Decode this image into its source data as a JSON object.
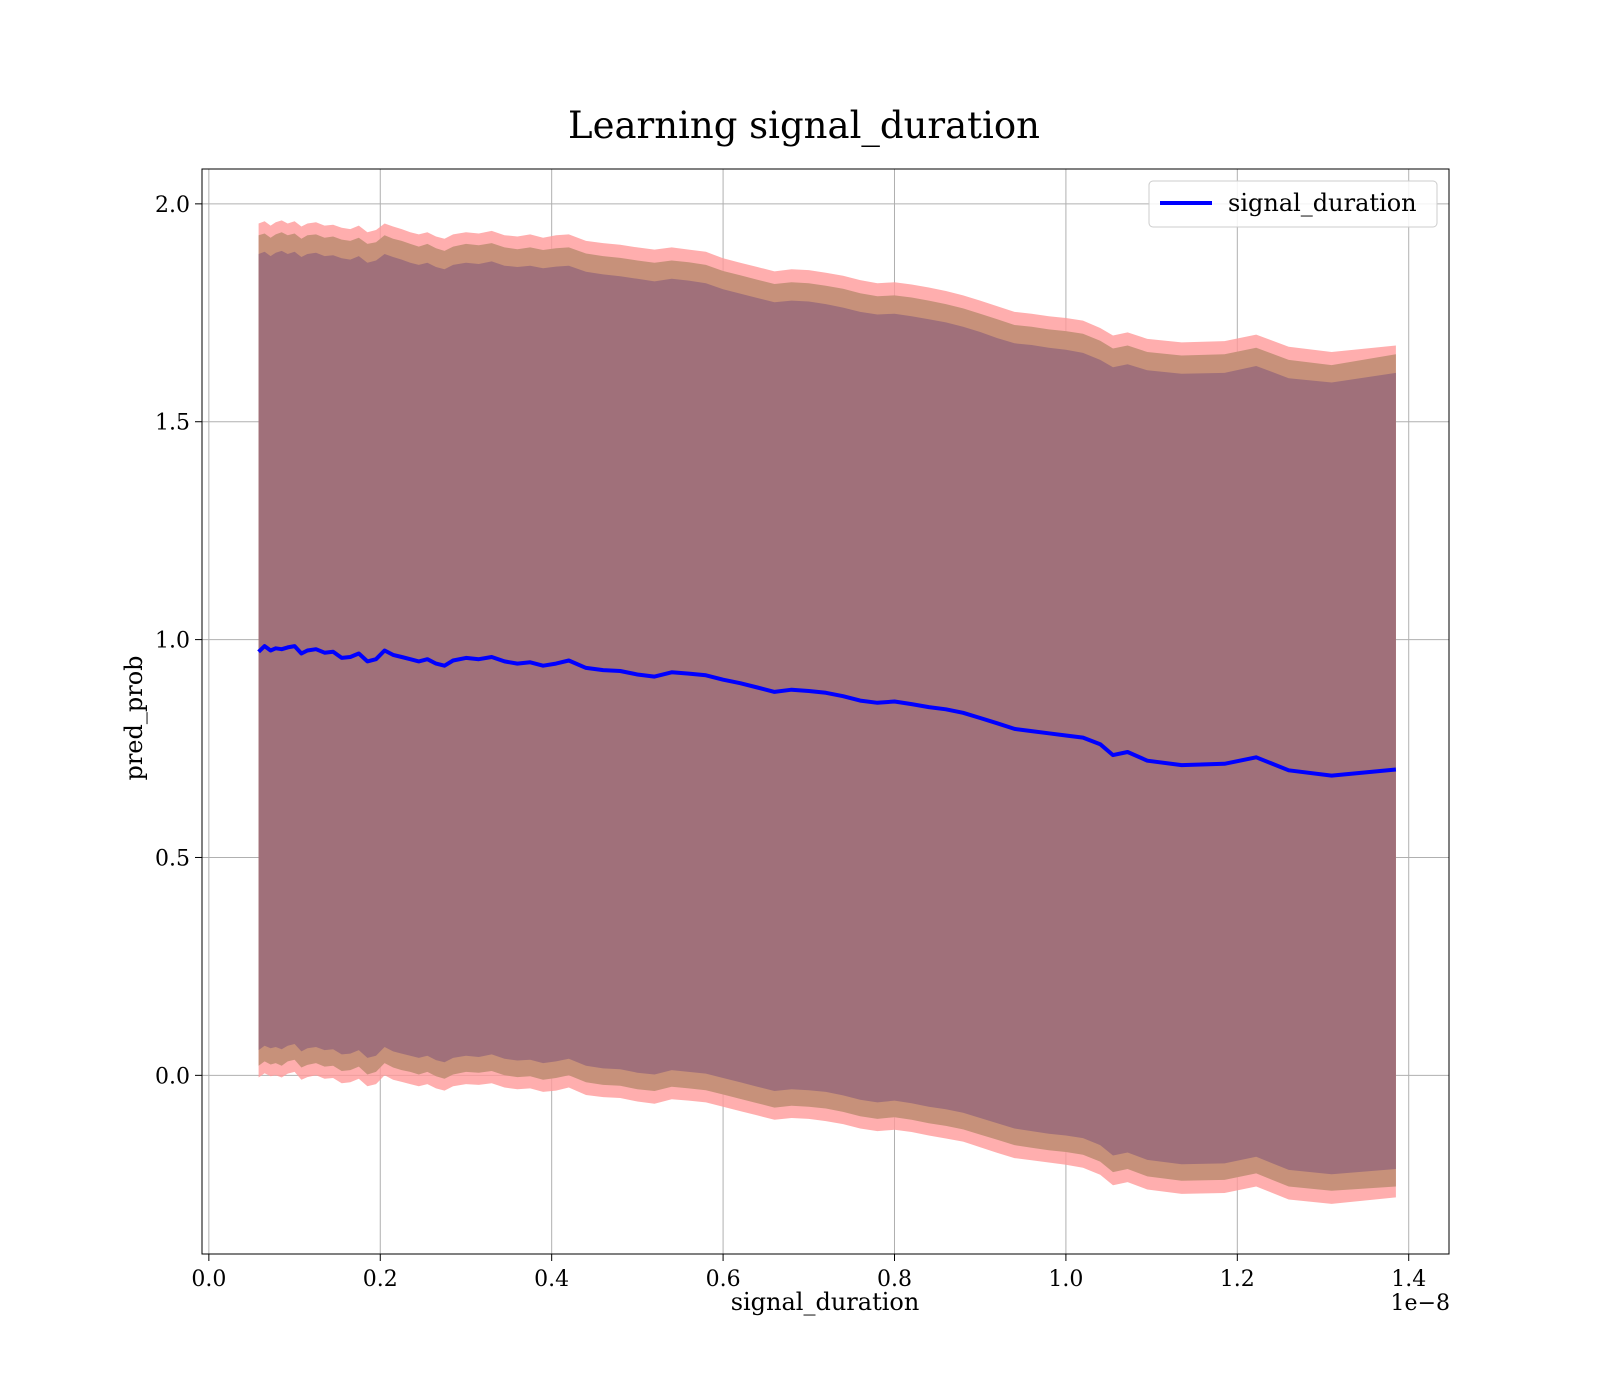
{
  "chart_data": {
    "type": "line",
    "title": "Learning signal_duration",
    "xlabel": "signal_duration",
    "ylabel": "pred_prob",
    "x_offset_text": "1e−8",
    "xlim": [
      -0.008,
      1.447
    ],
    "ylim": [
      -0.41,
      2.08
    ],
    "xticks": [
      0.0,
      0.2,
      0.4,
      0.6,
      0.8,
      1.0,
      1.2,
      1.4
    ],
    "xtick_labels": [
      "0.0",
      "0.2",
      "0.4",
      "0.6",
      "0.8",
      "1.0",
      "1.2",
      "1.4"
    ],
    "yticks": [
      0.0,
      0.5,
      1.0,
      1.5,
      2.0
    ],
    "ytick_labels": [
      "0.0",
      "0.5",
      "1.0",
      "1.5",
      "2.0"
    ],
    "grid": true,
    "legend_position": "top-right",
    "series": [
      {
        "name": "signal_duration",
        "color": "#0000ff",
        "x": [
          0.058,
          0.065,
          0.072,
          0.078,
          0.085,
          0.092,
          0.1,
          0.108,
          0.115,
          0.125,
          0.135,
          0.145,
          0.155,
          0.165,
          0.175,
          0.185,
          0.195,
          0.205,
          0.215,
          0.225,
          0.235,
          0.245,
          0.255,
          0.265,
          0.275,
          0.285,
          0.3,
          0.315,
          0.33,
          0.345,
          0.36,
          0.375,
          0.39,
          0.405,
          0.42,
          0.44,
          0.46,
          0.48,
          0.5,
          0.52,
          0.54,
          0.56,
          0.58,
          0.6,
          0.62,
          0.64,
          0.66,
          0.68,
          0.7,
          0.72,
          0.74,
          0.76,
          0.78,
          0.8,
          0.82,
          0.84,
          0.86,
          0.88,
          0.9,
          0.92,
          0.94,
          0.96,
          0.98,
          1.0,
          1.02,
          1.04,
          1.055,
          1.072,
          1.095,
          1.135,
          1.185,
          1.222,
          1.26,
          1.31,
          1.385
        ],
        "values": [
          0.972,
          0.985,
          0.975,
          0.98,
          0.978,
          0.982,
          0.985,
          0.968,
          0.975,
          0.978,
          0.97,
          0.972,
          0.958,
          0.96,
          0.968,
          0.95,
          0.955,
          0.975,
          0.965,
          0.96,
          0.955,
          0.95,
          0.955,
          0.945,
          0.94,
          0.952,
          0.958,
          0.955,
          0.96,
          0.95,
          0.945,
          0.948,
          0.94,
          0.945,
          0.952,
          0.935,
          0.93,
          0.928,
          0.92,
          0.915,
          0.925,
          0.922,
          0.918,
          0.908,
          0.9,
          0.89,
          0.88,
          0.885,
          0.882,
          0.878,
          0.87,
          0.86,
          0.855,
          0.858,
          0.852,
          0.845,
          0.84,
          0.832,
          0.82,
          0.808,
          0.795,
          0.79,
          0.785,
          0.78,
          0.775,
          0.76,
          0.735,
          0.742,
          0.722,
          0.712,
          0.715,
          0.73,
          0.7,
          0.688,
          0.702
        ],
        "band_outer_upper": [
          1.955,
          1.96,
          1.95,
          1.958,
          1.962,
          1.955,
          1.96,
          1.948,
          1.955,
          1.958,
          1.95,
          1.952,
          1.945,
          1.942,
          1.95,
          1.935,
          1.94,
          1.955,
          1.948,
          1.942,
          1.935,
          1.93,
          1.935,
          1.925,
          1.92,
          1.93,
          1.935,
          1.932,
          1.938,
          1.928,
          1.925,
          1.93,
          1.922,
          1.928,
          1.93,
          1.915,
          1.91,
          1.906,
          1.9,
          1.895,
          1.9,
          1.895,
          1.89,
          1.875,
          1.865,
          1.855,
          1.845,
          1.85,
          1.848,
          1.842,
          1.835,
          1.825,
          1.818,
          1.82,
          1.815,
          1.808,
          1.8,
          1.79,
          1.778,
          1.765,
          1.752,
          1.748,
          1.742,
          1.738,
          1.732,
          1.715,
          1.698,
          1.705,
          1.69,
          1.682,
          1.685,
          1.7,
          1.672,
          1.66,
          1.675
        ],
        "band_outer_lower": [
          -0.005,
          0.005,
          -0.002,
          0.0,
          -0.005,
          0.004,
          0.008,
          -0.01,
          -0.004,
          0.0,
          -0.008,
          -0.006,
          -0.018,
          -0.016,
          -0.008,
          -0.025,
          -0.02,
          0.0,
          -0.01,
          -0.015,
          -0.02,
          -0.025,
          -0.02,
          -0.03,
          -0.035,
          -0.025,
          -0.02,
          -0.022,
          -0.018,
          -0.028,
          -0.032,
          -0.03,
          -0.038,
          -0.035,
          -0.028,
          -0.045,
          -0.05,
          -0.052,
          -0.06,
          -0.065,
          -0.055,
          -0.058,
          -0.062,
          -0.072,
          -0.082,
          -0.092,
          -0.102,
          -0.098,
          -0.1,
          -0.105,
          -0.112,
          -0.122,
          -0.128,
          -0.125,
          -0.13,
          -0.138,
          -0.145,
          -0.152,
          -0.165,
          -0.178,
          -0.19,
          -0.195,
          -0.2,
          -0.205,
          -0.212,
          -0.228,
          -0.252,
          -0.245,
          -0.262,
          -0.272,
          -0.27,
          -0.255,
          -0.285,
          -0.295,
          -0.28
        ],
        "band_mid_upper": [
          1.928,
          1.932,
          1.922,
          1.93,
          1.935,
          1.928,
          1.932,
          1.92,
          1.928,
          1.93,
          1.922,
          1.925,
          1.918,
          1.915,
          1.922,
          1.908,
          1.912,
          1.928,
          1.92,
          1.915,
          1.908,
          1.902,
          1.908,
          1.898,
          1.892,
          1.902,
          1.908,
          1.905,
          1.91,
          1.9,
          1.896,
          1.9,
          1.894,
          1.898,
          1.9,
          1.886,
          1.88,
          1.876,
          1.87,
          1.865,
          1.87,
          1.866,
          1.86,
          1.846,
          1.836,
          1.826,
          1.816,
          1.82,
          1.818,
          1.812,
          1.805,
          1.795,
          1.788,
          1.79,
          1.785,
          1.778,
          1.77,
          1.76,
          1.748,
          1.735,
          1.722,
          1.718,
          1.712,
          1.708,
          1.702,
          1.686,
          1.668,
          1.675,
          1.66,
          1.652,
          1.655,
          1.67,
          1.642,
          1.63,
          1.655
        ],
        "band_mid_lower": [
          0.022,
          0.032,
          0.025,
          0.028,
          0.022,
          0.032,
          0.036,
          0.018,
          0.024,
          0.028,
          0.02,
          0.022,
          0.01,
          0.012,
          0.02,
          0.002,
          0.008,
          0.028,
          0.018,
          0.012,
          0.008,
          0.002,
          0.008,
          -0.002,
          -0.008,
          0.002,
          0.008,
          0.006,
          0.01,
          0.0,
          -0.004,
          -0.002,
          -0.01,
          -0.006,
          0.0,
          -0.016,
          -0.022,
          -0.024,
          -0.032,
          -0.036,
          -0.026,
          -0.03,
          -0.034,
          -0.044,
          -0.054,
          -0.064,
          -0.074,
          -0.07,
          -0.072,
          -0.076,
          -0.084,
          -0.094,
          -0.1,
          -0.096,
          -0.102,
          -0.11,
          -0.116,
          -0.124,
          -0.136,
          -0.148,
          -0.16,
          -0.166,
          -0.172,
          -0.176,
          -0.182,
          -0.198,
          -0.222,
          -0.215,
          -0.232,
          -0.242,
          -0.24,
          -0.225,
          -0.255,
          -0.265,
          -0.255
        ],
        "band_inner_upper": [
          1.885,
          1.89,
          1.88,
          1.888,
          1.892,
          1.885,
          1.89,
          1.878,
          1.885,
          1.888,
          1.88,
          1.882,
          1.875,
          1.872,
          1.88,
          1.865,
          1.87,
          1.885,
          1.878,
          1.872,
          1.865,
          1.86,
          1.865,
          1.855,
          1.85,
          1.86,
          1.865,
          1.862,
          1.868,
          1.858,
          1.855,
          1.858,
          1.852,
          1.856,
          1.858,
          1.844,
          1.838,
          1.834,
          1.828,
          1.822,
          1.828,
          1.824,
          1.818,
          1.804,
          1.794,
          1.784,
          1.774,
          1.778,
          1.776,
          1.77,
          1.762,
          1.752,
          1.746,
          1.748,
          1.742,
          1.735,
          1.728,
          1.718,
          1.706,
          1.692,
          1.68,
          1.676,
          1.67,
          1.665,
          1.658,
          1.642,
          1.625,
          1.632,
          1.618,
          1.61,
          1.612,
          1.628,
          1.6,
          1.59,
          1.612
        ],
        "band_inner_lower": [
          0.058,
          0.068,
          0.062,
          0.065,
          0.06,
          0.068,
          0.072,
          0.055,
          0.062,
          0.065,
          0.058,
          0.06,
          0.048,
          0.05,
          0.058,
          0.04,
          0.045,
          0.065,
          0.055,
          0.05,
          0.045,
          0.04,
          0.045,
          0.035,
          0.03,
          0.04,
          0.045,
          0.042,
          0.048,
          0.038,
          0.034,
          0.036,
          0.028,
          0.032,
          0.038,
          0.022,
          0.016,
          0.014,
          0.006,
          0.002,
          0.012,
          0.008,
          0.004,
          -0.006,
          -0.016,
          -0.026,
          -0.036,
          -0.032,
          -0.034,
          -0.038,
          -0.046,
          -0.056,
          -0.062,
          -0.058,
          -0.064,
          -0.072,
          -0.078,
          -0.086,
          -0.098,
          -0.11,
          -0.122,
          -0.128,
          -0.134,
          -0.138,
          -0.144,
          -0.16,
          -0.184,
          -0.177,
          -0.194,
          -0.204,
          -0.202,
          -0.187,
          -0.217,
          -0.227,
          -0.215
        ]
      }
    ],
    "band_colors": {
      "outer": "#ff9a9a",
      "mid": "#c7917a",
      "inner": "#a0707a"
    }
  }
}
